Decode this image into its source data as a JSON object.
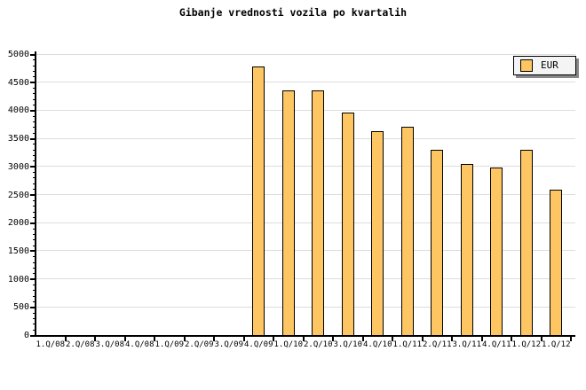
{
  "title": "Gibanje vrednosti vozila po kvartalih",
  "legend": {
    "label": "EUR"
  },
  "chart_data": {
    "type": "bar",
    "title": "Gibanje vrednosti vozila po kvartalih",
    "categories": [
      "1.Q/08",
      "2.Q/08",
      "3.Q/08",
      "4.Q/08",
      "1.Q/09",
      "2.Q/09",
      "3.Q/09",
      "4.Q/09",
      "1.Q/10",
      "2.Q/10",
      "3.Q/10",
      "4.Q/10",
      "1.Q/11",
      "2.Q/11",
      "3.Q/11",
      "4.Q/11",
      "1.Q/12",
      "1.Q/12"
    ],
    "series": [
      {
        "name": "EUR",
        "values": [
          null,
          null,
          null,
          null,
          null,
          null,
          null,
          4780,
          4350,
          4350,
          3960,
          3630,
          3700,
          3300,
          3050,
          2980,
          3300,
          2590
        ]
      }
    ],
    "xlabel": "",
    "ylabel": "",
    "ylim": [
      0,
      5000
    ],
    "yticks": [
      0,
      500,
      1000,
      1500,
      2000,
      2500,
      3000,
      3500,
      4000,
      4500,
      5000
    ],
    "ytick_step": 500,
    "yminor_step": 100,
    "grid": "horizontal-only",
    "legend_position": "top-right",
    "colors": {
      "bar_fill": "#FDC663",
      "bar_border": "#000000",
      "grid": "#DDDDDD",
      "axis": "#000000",
      "legend_bg": "#F4F4F4",
      "legend_shadow": "#888888",
      "text": "#000000"
    }
  }
}
